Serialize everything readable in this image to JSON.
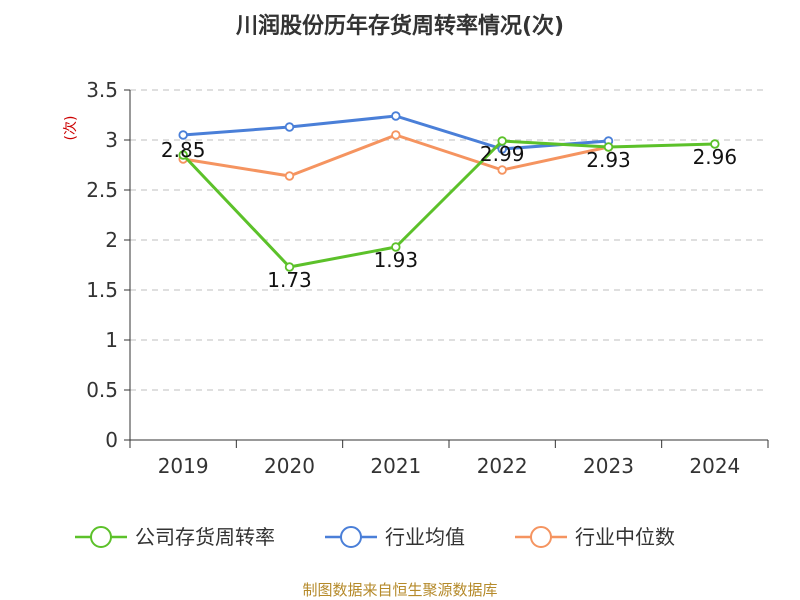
{
  "chart_data": {
    "type": "line",
    "title": "川润股份历年存货周转率情况(次)",
    "ylabel": "(次)",
    "xlabel": "",
    "categories": [
      "2019",
      "2020",
      "2021",
      "2022",
      "2023",
      "2024"
    ],
    "ylim": [
      0,
      3.5
    ],
    "yticks": [
      "0",
      "0.5",
      "1",
      "1.5",
      "2",
      "2.5",
      "3",
      "3.5"
    ],
    "grid": true,
    "legend_position": "bottom",
    "series": [
      {
        "name": "公司存货周转率",
        "color": "#5cc12a",
        "values": [
          2.85,
          1.73,
          1.93,
          2.99,
          2.93,
          2.96
        ],
        "labels": [
          "2.85",
          "1.73",
          "1.93",
          "2.99",
          "2.93",
          "2.96"
        ]
      },
      {
        "name": "行业均值",
        "color": "#4a7fd8",
        "values": [
          3.05,
          3.13,
          3.24,
          2.91,
          2.99,
          null
        ]
      },
      {
        "name": "行业中位数",
        "color": "#f59460",
        "values": [
          2.81,
          2.64,
          3.05,
          2.7,
          2.93,
          null
        ]
      }
    ]
  },
  "footer": "制图数据来自恒生聚源数据库"
}
